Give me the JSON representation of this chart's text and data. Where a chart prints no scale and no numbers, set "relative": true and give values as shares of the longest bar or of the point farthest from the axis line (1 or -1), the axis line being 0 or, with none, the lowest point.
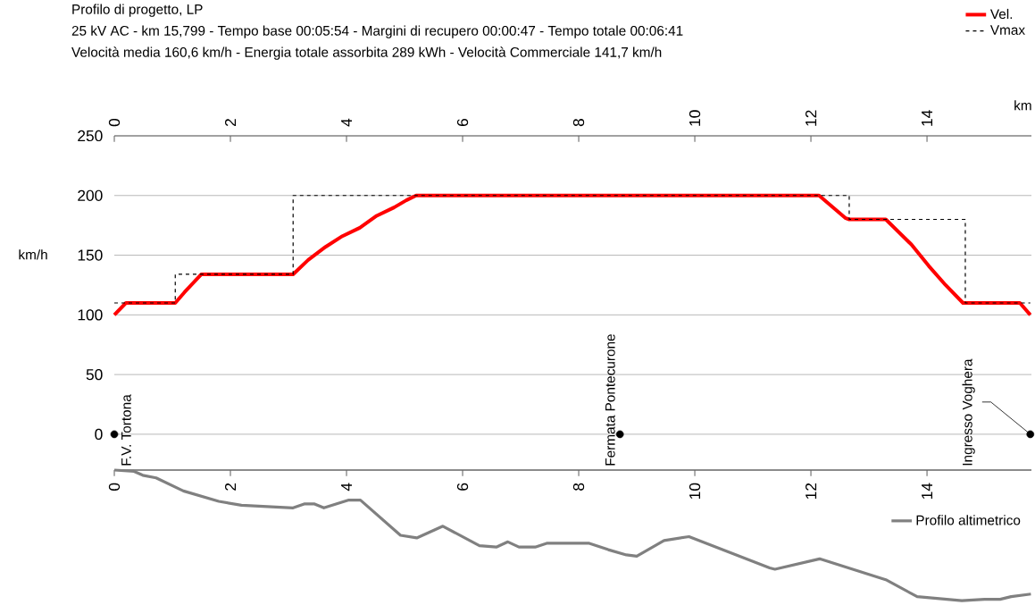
{
  "chart_data": [
    {
      "type": "line",
      "title": "Profilo di progetto, LP",
      "subtitle": "25 kV AC  -  km 15,799  -  Tempo base 00:05:54  -  Margini di recupero 00:00:47  -  Tempo totale 00:06:41",
      "annotations": [
        "Velocità media 160,6 km/h  -  Energia totale assorbita 289 kWh  -  Velocità Commerciale 141,7 km/h",
        {
          "text": "F.V. Tortona",
          "x": 0,
          "y": 0
        },
        {
          "text": "Fermata Pontecurone",
          "x": 8.71,
          "y": 0
        },
        {
          "text": "Ingresso Voghera",
          "x": 15.78,
          "y": 0
        }
      ],
      "xlabel": "km",
      "ylabel": "km/h",
      "xlim": [
        0,
        15.799
      ],
      "xticks": [
        0,
        2,
        4,
        6,
        8,
        10,
        12,
        14
      ],
      "ylim": [
        -30,
        250
      ],
      "yticks": [
        0,
        50,
        100,
        150,
        200,
        250
      ],
      "grid": "y",
      "legend": "top right",
      "series": [
        {
          "name": "Vel.",
          "color": "#ff0000",
          "x": [
            0,
            0.2,
            1.05,
            1.21,
            1.5,
            3.08,
            3.34,
            3.64,
            3.93,
            4.23,
            4.52,
            4.82,
            5.03,
            5.2,
            12.14,
            12.6,
            12.66,
            13.29,
            13.73,
            14.03,
            14.32,
            14.62,
            15.6,
            15.78
          ],
          "values": [
            100,
            110,
            110,
            119,
            134,
            134,
            146,
            157,
            166,
            173,
            183,
            190,
            196,
            200,
            200,
            181,
            180,
            180,
            159,
            141,
            125,
            110,
            110,
            100
          ]
        },
        {
          "name": "Vmax",
          "type": "step",
          "line_style": "dashed",
          "color": "#000000",
          "x": [
            0,
            1.05,
            3.08,
            12.66,
            14.66,
            15.78
          ],
          "values": [
            110,
            134,
            200,
            180,
            110,
            110
          ]
        },
        {
          "type": "scatter",
          "marker": "circle",
          "color": "#000000",
          "x": [
            0,
            8.71,
            15.78
          ],
          "values": [
            0,
            0,
            0
          ]
        }
      ]
    },
    {
      "type": "line",
      "relative": true,
      "xlim": [
        0,
        15.799
      ],
      "xticks": [
        0,
        2,
        4,
        6,
        8,
        10,
        12,
        14
      ],
      "tick_labels": "x",
      "legend": "right",
      "series": [
        {
          "name": "Profilo altimetrico",
          "color": "#808080",
          "x": [
            0,
            0.34,
            0.49,
            0.72,
            1.19,
            1.8,
            2.19,
            3.08,
            3.27,
            3.45,
            3.61,
            4.04,
            4.24,
            4.93,
            5.21,
            5.66,
            6.29,
            6.58,
            6.78,
            6.97,
            7.25,
            7.46,
            8.17,
            8.51,
            8.82,
            9.0,
            9.47,
            9.9,
            11.29,
            11.38,
            12.15,
            13.29,
            13.83,
            14.6,
            14.99,
            15.26,
            15.45,
            15.79
          ],
          "values": [
            1.0,
            0.99,
            0.96,
            0.94,
            0.84,
            0.76,
            0.73,
            0.71,
            0.74,
            0.74,
            0.71,
            0.77,
            0.77,
            0.5,
            0.48,
            0.57,
            0.42,
            0.41,
            0.45,
            0.41,
            0.41,
            0.44,
            0.44,
            0.39,
            0.35,
            0.34,
            0.46,
            0.49,
            0.25,
            0.24,
            0.32,
            0.16,
            0.03,
            0.0,
            0.01,
            0.01,
            0.03,
            0.05
          ]
        }
      ]
    }
  ]
}
